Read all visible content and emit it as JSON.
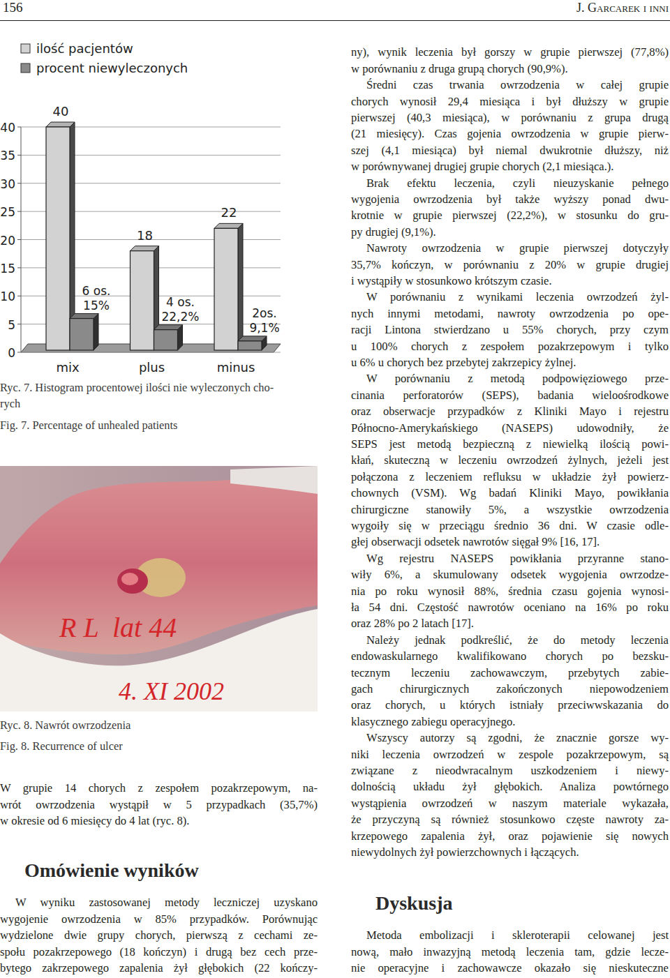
{
  "header": {
    "page": "156",
    "authors": "J. Garcarek i inni"
  },
  "chart_data": {
    "type": "bar",
    "categories": [
      "mix",
      "plus",
      "minus"
    ],
    "series": [
      {
        "name": "ilość pacjentów",
        "color": "#d2d2d2",
        "values": [
          40,
          18,
          22
        ]
      },
      {
        "name": "procent niewyleczonych",
        "color": "#8a8a8a",
        "values": [
          6,
          4,
          2
        ],
        "value_labels": [
          "6 os.\n15%",
          "4 os.\n22,2%",
          "2os.\n9,1%"
        ]
      }
    ],
    "ylim": [
      0,
      40
    ],
    "yticks": [
      0,
      5,
      10,
      15,
      20,
      25,
      30,
      35,
      40
    ],
    "grid": true,
    "data_labels": true,
    "legend": "top-left"
  },
  "figure7": {
    "caption_pl": [
      "Ryc. 7. Histogram procentowej ilości nie wyleczonych cho-",
      "rych"
    ],
    "caption_en": "Fig. 7. Percentage of unhealed patients"
  },
  "figure8": {
    "photo_texts": [
      "R L  lat 44",
      "4. XI 2002"
    ],
    "caption_pl": "Ryc. 8. Nawrót owrzodzenia",
    "caption_en": "Fig. 8. Recurrence of ulcer"
  },
  "left_column": {
    "paragraph": [
      "W grupie 14 chorych z zespołem pozakrzepowym, na-",
      "wrót owrzodzenia wystąpił w 5 przypadkach (35,7%)",
      "w okresie od 6 miesięcy do 4 lat (ryc. 8)."
    ],
    "heading": "Omówienie wyników",
    "paragraph_after": [
      "W wyniku zastosowanej metody leczniczej uzyskano",
      "wygojenie owrzodzenia w 85% przypadków. Porównując",
      "wydzielone dwie grupy chorych, pierwszą z cechami ze-",
      "społu pozakrzepowego (18 kończyn) i drugą bez cech prze-",
      "bytego zakrzepowego zapalenia żył głębokich (22 kończy-"
    ]
  },
  "right_column": {
    "paragraphs": [
      [
        "ny), wynik leczenia był gorszy w grupie pierwszej (77,8%)",
        "w porównaniu z druga grupą chorych (90,9%)."
      ],
      [
        "Średni czas trwania owrzodzenia w całej grupie",
        "chorych wynosił 29,4 miesiąca i był dłuższy w grupie",
        "pierwszej (40,3 miesiąca), w porównaniu z grupa drugą",
        "(21 miesięcy). Czas gojenia owrzodzenia w grupie pierw-",
        "szej (4,1 miesiąca) był niemal dwukrotnie dłuższy, niż",
        "w porównywanej drugiej grupie chorych (2,1 miesiąca.)."
      ],
      [
        "Brak efektu leczenia, czyli nieuzyskanie pełnego",
        "wygojenia owrzodzenia był także wyższy ponad dwu-",
        "krotnie w grupie pierwszej (22,2%), w stosunku do gru-",
        "py drugiej (9,1%)."
      ],
      [
        "Nawroty owrzodzenia w grupie pierwszej dotyczyły",
        "35,7% kończyn, w porównaniu z 20% w grupie drugiej",
        "i wystąpiły w stosunkowo krótszym czasie."
      ],
      [
        "W porównaniu z wynikami leczenia owrzodzeń żyl-",
        "nych innymi metodami, nawroty owrzodzenia po ope-",
        "racji Lintona stwierdzano u 55% chorych, przy czym",
        "u 100% chorych z zespołem pozakrzepowym i tylko",
        "u 6% u chorych bez przebytej zakrzepicy żylnej."
      ],
      [
        "W porównaniu z metodą podpowięziowego prze-",
        "cinania perforatorów (SEPS), badania wieloośrodkowe",
        "oraz obserwacje przypadków z Kliniki Mayo i rejestru",
        "Północno-Amerykańskiego (NASEPS) udowodniły, że",
        "SEPS jest metodą bezpieczną z niewielką ilością powi-",
        "kłań, skuteczną w leczeniu owrzodzeń żylnych, jeżeli jest",
        "połączona z leczeniem refluksu w układzie żył powierz-",
        "chownych (VSM). Wg badań Kliniki Mayo, powikłania",
        "chirurgiczne stanowiły 5%, a wszystkie owrzodzenia",
        "wygoiły się w przeciągu średnio 36 dni. W czasie odle-",
        "głej obserwacji odsetek nawrotów sięgał 9% [16, 17]."
      ],
      [
        "Wg rejestru NASEPS powikłania przyranne stano-",
        "wiły 6%, a skumulowany odsetek wygojenia owrzodze-",
        "nia po roku wynosił 88%, średnia czasu gojenia wynosi-",
        "ła 54 dni. Częstość nawrotów oceniano na 16% po roku",
        "oraz 28% po 2 latach [17]."
      ],
      [
        "Należy jednak podkreślić, że do metody leczenia",
        "endowaskularnego kwalifikowano chorych po bezsku-",
        "tecznym leczeniu zachowawczym, przebytych zabie-",
        "gach chirurgicznych zakończonych niepowodzeniem",
        "oraz chorych, u których istniały przeciwwskazania do",
        "klasycznego zabiegu operacyjnego."
      ],
      [
        "Wszyscy autorzy są zgodni, że znacznie gorsze wy-",
        "niki leczenia owrzodzeń w zespole pozakrzepowym, są",
        "związane z nieodwracalnym uszkodzeniem i niewy-",
        "dolnością układu żył głębokich. Analiza powtórnego",
        "wystąpienia owrzodzeń w naszym materiale wykazała,",
        "że przyczyną są również stosunkowo częste nawroty za-",
        "krzepowego zapalenia żył, oraz pojawienie się nowych",
        "niewydolnych żył powierzchownych i łączących."
      ]
    ],
    "heading": "Dyskusja",
    "paragraph_after": [
      "Metoda embolizacji i skleroterapii celowanej jest",
      "nową, mało inwazyjną metodą leczenia tam, gdzie lecze-",
      "nie operacyjne i zachowawcze okazało się nieskuteczne"
    ]
  }
}
